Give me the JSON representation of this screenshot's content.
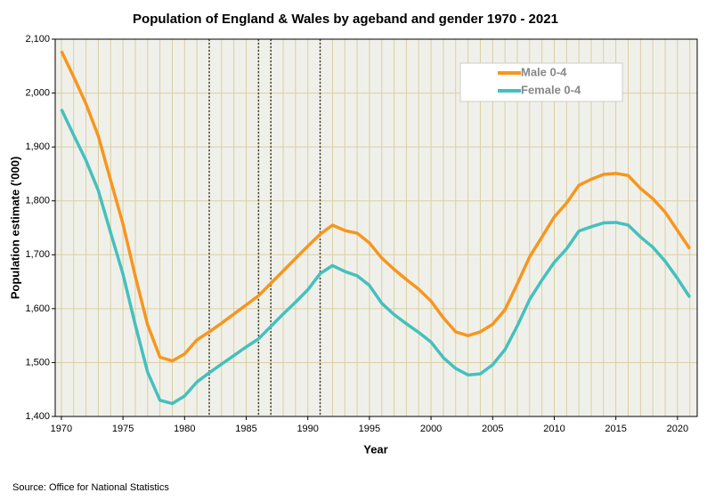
{
  "chart_data": {
    "type": "line",
    "title": "Population of England & Wales by ageband and gender 1970 - 2021",
    "x_label": "Year",
    "y_label": "Population estimate ('000)",
    "source": "Source: Office for National Statistics",
    "x": [
      1970,
      1971,
      1972,
      1973,
      1974,
      1975,
      1976,
      1977,
      1978,
      1979,
      1980,
      1981,
      1982,
      1983,
      1984,
      1985,
      1986,
      1987,
      1988,
      1989,
      1990,
      1991,
      1992,
      1993,
      1994,
      1995,
      1996,
      1997,
      1998,
      1999,
      2000,
      2001,
      2002,
      2003,
      2004,
      2005,
      2006,
      2007,
      2008,
      2009,
      2010,
      2011,
      2012,
      2013,
      2014,
      2015,
      2016,
      2017,
      2018,
      2019,
      2020,
      2021
    ],
    "series": [
      {
        "name": "Male 0-4",
        "color": "#f7961e",
        "values": [
          2078,
          2030,
          1980,
          1920,
          1838,
          1757,
          1660,
          1570,
          1510,
          1503,
          1516,
          1542,
          1557,
          1573,
          1590,
          1607,
          1624,
          1647,
          1670,
          1693,
          1716,
          1738,
          1755,
          1745,
          1740,
          1722,
          1694,
          1673,
          1654,
          1636,
          1614,
          1583,
          1557,
          1550,
          1557,
          1571,
          1598,
          1646,
          1696,
          1733,
          1770,
          1796,
          1829,
          1840,
          1849,
          1851,
          1847,
          1823,
          1804,
          1779,
          1745,
          1711
        ]
      },
      {
        "name": "Female 0-4",
        "color": "#45c0bd",
        "values": [
          1970,
          1922,
          1875,
          1819,
          1741,
          1664,
          1570,
          1482,
          1430,
          1424,
          1438,
          1464,
          1481,
          1497,
          1513,
          1529,
          1544,
          1567,
          1590,
          1612,
          1635,
          1665,
          1680,
          1669,
          1661,
          1643,
          1610,
          1589,
          1572,
          1556,
          1538,
          1509,
          1489,
          1477,
          1479,
          1496,
          1524,
          1568,
          1617,
          1653,
          1686,
          1711,
          1744,
          1752,
          1759,
          1760,
          1755,
          1733,
          1714,
          1688,
          1656,
          1621
        ]
      }
    ],
    "reference_lines": [
      1982,
      1986,
      1987,
      1991
    ],
    "xlim": [
      1969.5,
      2021.6
    ],
    "ylim": [
      1400,
      2100
    ],
    "xticks": [
      1970,
      1975,
      1980,
      1985,
      1990,
      1995,
      2000,
      2005,
      2010,
      2015,
      2020
    ],
    "yticks": [
      {
        "value": 1400,
        "label": "1,400"
      },
      {
        "value": 1500,
        "label": "1,500"
      },
      {
        "value": 1600,
        "label": "1,600"
      },
      {
        "value": 1700,
        "label": "1,700"
      },
      {
        "value": 1800,
        "label": "1,800"
      },
      {
        "value": 1900,
        "label": "1,900"
      },
      {
        "value": 2000,
        "label": "2,000"
      },
      {
        "value": 2100,
        "label": "2,100"
      }
    ],
    "grid": true,
    "legend": "upper right"
  }
}
